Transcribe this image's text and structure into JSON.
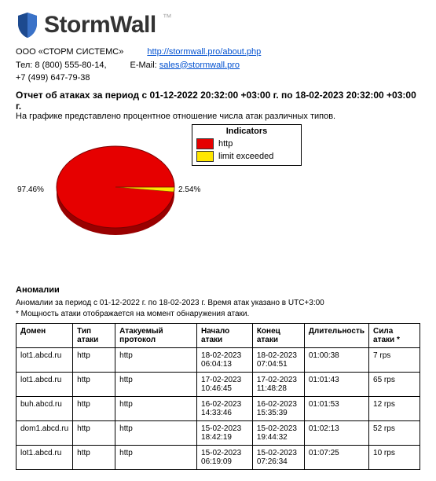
{
  "logo": {
    "text": "StormWall",
    "tm": "™",
    "shield_color": "#2a5db0"
  },
  "company": {
    "name": "ООО «СТОРМ СИСТЕМС»",
    "url": "http://stormwall.pro/about.php",
    "phones_label": "Тел: 8 (800) 555-80-14,",
    "phones2": "+7 (499) 647-79-38",
    "email_label": "E-Mail:",
    "email": "sales@stormwall.pro"
  },
  "report": {
    "title": "Отчет об атаках за период с 01-12-2022 20:32:00 +03:00 г. по 18-02-2023 20:32:00 +03:00 г.",
    "subtitle": "На графике представлено процентное отношение числа атак различных типов."
  },
  "chart": {
    "type": "pie",
    "slices": [
      {
        "label": "97.46%",
        "value": 97.46,
        "color": "#e60000"
      },
      {
        "label": "2.54%",
        "value": 2.54,
        "color": "#ffe600"
      }
    ],
    "legend_title": "Indicators",
    "legend": [
      {
        "label": "http",
        "color": "#e60000"
      },
      {
        "label": "limit exceeded",
        "color": "#ffe600"
      }
    ],
    "outline": "#7a0000"
  },
  "anomalies": {
    "heading": "Аномалии",
    "note1": "Аномалии за период с 01-12-2022 г. по 18-02-2023 г. Время атак указано в UTC+3:00",
    "note2": "* Мощность атаки отображается на момент обнаружения атаки.",
    "columns": [
      "Домен",
      "Тип атаки",
      "Атакуемый протокол",
      "Начало атаки",
      "Конец атаки",
      "Длительность",
      "Сила атаки *"
    ],
    "rows": [
      [
        "lot1.abcd.ru",
        "http",
        "http",
        "18-02-2023 06:04:13",
        "18-02-2023 07:04:51",
        "01:00:38",
        "7 rps"
      ],
      [
        "lot1.abcd.ru",
        "http",
        "http",
        "17-02-2023 10:46:45",
        "17-02-2023 11:48:28",
        "01:01:43",
        "65 rps"
      ],
      [
        "buh.abcd.ru",
        "http",
        "http",
        "16-02-2023 14:33:46",
        "16-02-2023 15:35:39",
        "01:01:53",
        "12 rps"
      ],
      [
        "dom1.abcd.ru",
        "http",
        "http",
        "15-02-2023 18:42:19",
        "15-02-2023 19:44:32",
        "01:02:13",
        "52 rps"
      ],
      [
        "lot1.abcd.ru",
        "http",
        "http",
        "15-02-2023 06:19:09",
        "15-02-2023 07:26:34",
        "01:07:25",
        "10 rps"
      ]
    ]
  }
}
